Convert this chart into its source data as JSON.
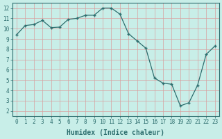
{
  "x": [
    0,
    1,
    2,
    3,
    4,
    5,
    6,
    7,
    8,
    9,
    10,
    11,
    12,
    13,
    14,
    15,
    16,
    17,
    18,
    19,
    20,
    21,
    22,
    23
  ],
  "y": [
    9.4,
    10.3,
    10.4,
    10.8,
    10.1,
    10.15,
    10.9,
    11.0,
    11.3,
    11.3,
    12.0,
    12.0,
    11.4,
    9.5,
    8.8,
    8.1,
    5.2,
    4.7,
    4.6,
    2.5,
    2.8,
    4.5,
    7.5,
    8.3
  ],
  "line_color": "#2d6e6e",
  "marker_color": "#2d6e6e",
  "bg_color": "#c8eee8",
  "grid_color": "#e8e8e8",
  "xlabel": "Humidex (Indice chaleur)",
  "xlim": [
    -0.5,
    23.5
  ],
  "ylim": [
    1.5,
    12.5
  ],
  "xticks": [
    0,
    1,
    2,
    3,
    4,
    5,
    6,
    7,
    8,
    9,
    10,
    11,
    12,
    13,
    14,
    15,
    16,
    17,
    18,
    19,
    20,
    21,
    22,
    23
  ],
  "yticks": [
    2,
    3,
    4,
    5,
    6,
    7,
    8,
    9,
    10,
    11,
    12
  ],
  "label_fontsize": 7,
  "tick_fontsize": 5.5
}
